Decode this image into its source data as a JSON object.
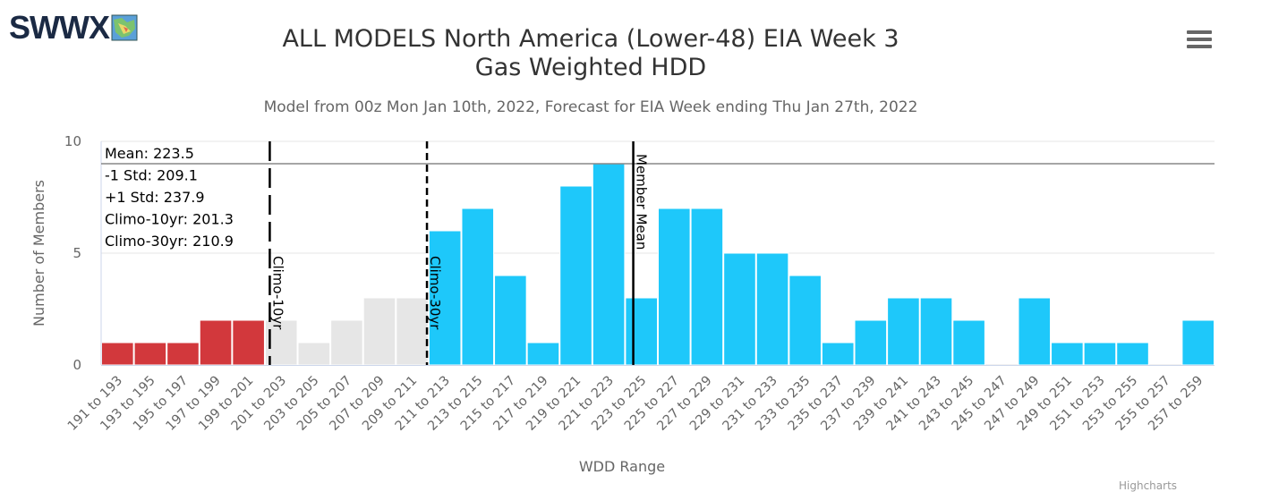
{
  "logo": {
    "text": "SWWX"
  },
  "menu": {
    "icon": "hamburger-menu-icon"
  },
  "title_line1": "ALL MODELS North America (Lower-48) EIA Week 3",
  "title_line2": "Gas Weighted HDD",
  "subtitle": "Model from 00z Mon Jan 10th, 2022, Forecast for EIA Week ending Thu Jan 27th, 2022",
  "credit": "Highcharts",
  "colors": {
    "below": "#d2383c",
    "climo": "#e6e6e6",
    "above": "#1ec8fa",
    "grid": "#e6e6e6",
    "axis_text": "#666666"
  },
  "chart_data": {
    "type": "bar",
    "title": "ALL MODELS North America (Lower-48) EIA Week 3 Gas Weighted HDD",
    "subtitle": "Model from 00z Mon Jan 10th, 2022, Forecast for EIA Week ending Thu Jan 27th, 2022",
    "xlabel": "WDD Range",
    "ylabel": "Number of Members",
    "ylim": [
      0,
      10
    ],
    "yticks": [
      0,
      5,
      10
    ],
    "grid": true,
    "categories": [
      "191 to 193",
      "193 to 195",
      "195 to 197",
      "197 to 199",
      "199 to 201",
      "201 to 203",
      "203 to 205",
      "205 to 207",
      "207 to 209",
      "209 to 211",
      "211 to 213",
      "213 to 215",
      "215 to 217",
      "217 to 219",
      "219 to 221",
      "221 to 223",
      "223 to 225",
      "225 to 227",
      "227 to 229",
      "229 to 231",
      "231 to 233",
      "233 to 235",
      "235 to 237",
      "237 to 239",
      "239 to 241",
      "241 to 243",
      "243 to 245",
      "245 to 247",
      "247 to 249",
      "249 to 251",
      "251 to 253",
      "253 to 255",
      "255 to 257",
      "257 to 259"
    ],
    "values": [
      1,
      1,
      1,
      2,
      2,
      2,
      1,
      2,
      3,
      3,
      6,
      7,
      4,
      1,
      8,
      9,
      3,
      7,
      7,
      5,
      5,
      4,
      1,
      2,
      3,
      3,
      2,
      0,
      3,
      1,
      1,
      1,
      0,
      2
    ],
    "bar_color_group": [
      "below",
      "below",
      "below",
      "below",
      "below",
      "climo",
      "climo",
      "climo",
      "climo",
      "climo",
      "above",
      "above",
      "above",
      "above",
      "above",
      "above",
      "above",
      "above",
      "above",
      "above",
      "above",
      "above",
      "above",
      "above",
      "above",
      "above",
      "above",
      "above",
      "above",
      "above",
      "above",
      "above",
      "above",
      "above"
    ],
    "stats_box": {
      "mean": "Mean: 223.5",
      "minus_std": "-1 Std: 209.1",
      "plus_std": "+1 Std: 237.9",
      "climo10": "Climo-10yr: 201.3",
      "climo30": "Climo-30yr: 210.9"
    },
    "stat_values": {
      "mean": 223.5,
      "minus_std": 209.1,
      "plus_std": 237.9,
      "climo10": 201.3,
      "climo30": 210.9
    },
    "reference_lines": [
      {
        "label": "Climo-10yr",
        "value": 201.3,
        "style": "long-dash"
      },
      {
        "label": "Climo-30yr",
        "value": 210.9,
        "style": "short-dash"
      },
      {
        "label": "Member Mean",
        "value": 223.5,
        "style": "solid"
      }
    ],
    "horizontal_line": {
      "value": 9
    }
  }
}
